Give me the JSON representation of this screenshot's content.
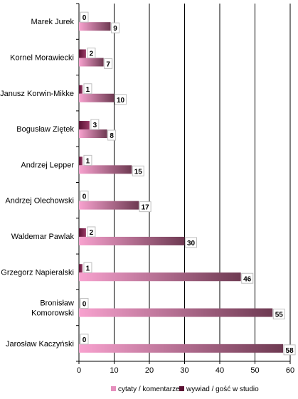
{
  "chart_data": {
    "type": "bar",
    "orientation": "horizontal",
    "categories": [
      "Marek Jurek",
      "Kornel Morawiecki",
      "Janusz Korwin-Mikke",
      "Bogusław Ziętek",
      "Andrzej Lepper",
      "Andrzej Olechowski",
      "Waldemar Pawlak",
      "Grzegorz Napieralski",
      "Bronisław\nKomorowski",
      "Jarosław Kaczyński"
    ],
    "series": [
      {
        "name": "cytaty / komentarze",
        "values": [
          9,
          7,
          10,
          8,
          15,
          17,
          30,
          46,
          55,
          58
        ],
        "color": "#f07ab8"
      },
      {
        "name": "wywiad / gość w studio",
        "values": [
          0,
          2,
          1,
          3,
          1,
          0,
          2,
          1,
          0,
          0
        ],
        "color": "#6b1f45"
      }
    ],
    "xlim": [
      0,
      60
    ],
    "xticks": [
      0,
      10,
      20,
      30,
      40,
      50,
      60
    ],
    "grid": true,
    "legend_position": "bottom"
  }
}
